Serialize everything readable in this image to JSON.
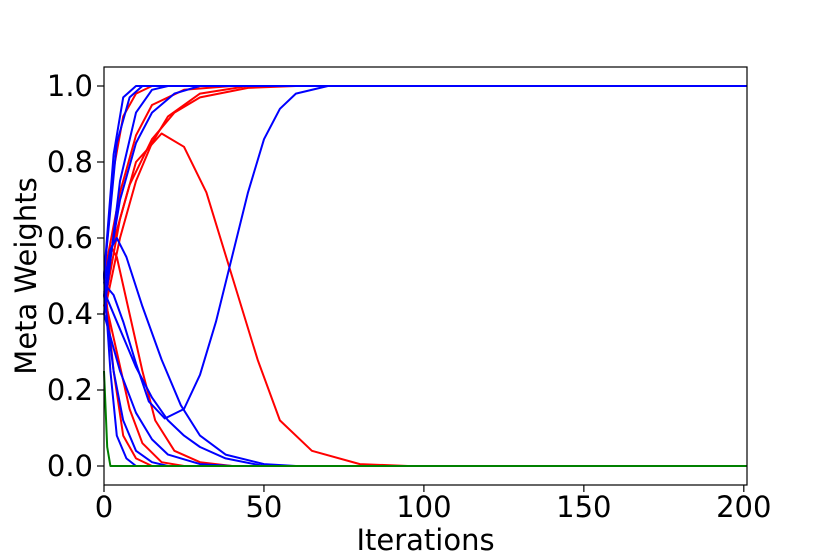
{
  "chart_data": {
    "type": "line",
    "title": "",
    "xlabel": "Iterations",
    "ylabel": "Meta Weights",
    "xlim": [
      0,
      201
    ],
    "ylim": [
      -0.05,
      1.05
    ],
    "xticks": [
      0,
      50,
      100,
      150,
      200
    ],
    "yticks": [
      0.0,
      0.2,
      0.4,
      0.6,
      0.8,
      1.0
    ],
    "xtick_labels": [
      "0",
      "50",
      "100",
      "150",
      "200"
    ],
    "ytick_labels": [
      "0.0",
      "0.2",
      "0.4",
      "0.6",
      "0.8",
      "1.0"
    ],
    "grid": false,
    "legend": "none",
    "colors": {
      "red": "#ff0000",
      "blue": "#0000ff",
      "green": "#008000"
    },
    "series": [
      {
        "color": "red",
        "points": [
          [
            0,
            0.5
          ],
          [
            5,
            0.72
          ],
          [
            10,
            0.87
          ],
          [
            15,
            0.95
          ],
          [
            25,
            0.99
          ],
          [
            40,
            1.0
          ],
          [
            201,
            1.0
          ]
        ]
      },
      {
        "color": "red",
        "points": [
          [
            0,
            0.5
          ],
          [
            8,
            0.74
          ],
          [
            15,
            0.86
          ],
          [
            22,
            0.93
          ],
          [
            30,
            0.97
          ],
          [
            45,
            0.995
          ],
          [
            60,
            1.0
          ],
          [
            201,
            1.0
          ]
        ]
      },
      {
        "color": "red",
        "points": [
          [
            0,
            0.5
          ],
          [
            3,
            0.78
          ],
          [
            6,
            0.92
          ],
          [
            10,
            0.98
          ],
          [
            15,
            1.0
          ],
          [
            201,
            1.0
          ]
        ]
      },
      {
        "color": "red",
        "points": [
          [
            0,
            0.4
          ],
          [
            5,
            0.6
          ],
          [
            10,
            0.75
          ],
          [
            15,
            0.85
          ],
          [
            20,
            0.92
          ],
          [
            30,
            0.98
          ],
          [
            45,
            1.0
          ],
          [
            201,
            1.0
          ]
        ]
      },
      {
        "color": "red",
        "points": [
          [
            0,
            0.42
          ],
          [
            5,
            0.65
          ],
          [
            10,
            0.8
          ],
          [
            18,
            0.875
          ],
          [
            25,
            0.84
          ],
          [
            32,
            0.72
          ],
          [
            40,
            0.5
          ],
          [
            48,
            0.28
          ],
          [
            55,
            0.12
          ],
          [
            65,
            0.04
          ],
          [
            80,
            0.005
          ],
          [
            95,
            0.0
          ],
          [
            201,
            0.0
          ]
        ]
      },
      {
        "color": "red",
        "points": [
          [
            0,
            0.5
          ],
          [
            2,
            0.58
          ],
          [
            4,
            0.55
          ],
          [
            8,
            0.4
          ],
          [
            12,
            0.25
          ],
          [
            16,
            0.12
          ],
          [
            22,
            0.04
          ],
          [
            30,
            0.01
          ],
          [
            40,
            0.0
          ],
          [
            201,
            0.0
          ]
        ]
      },
      {
        "color": "red",
        "points": [
          [
            0,
            0.45
          ],
          [
            4,
            0.3
          ],
          [
            8,
            0.15
          ],
          [
            12,
            0.06
          ],
          [
            18,
            0.01
          ],
          [
            25,
            0.0
          ],
          [
            201,
            0.0
          ]
        ]
      },
      {
        "color": "red",
        "points": [
          [
            0,
            0.5
          ],
          [
            3,
            0.25
          ],
          [
            6,
            0.08
          ],
          [
            10,
            0.02
          ],
          [
            15,
            0.0
          ],
          [
            201,
            0.0
          ]
        ]
      },
      {
        "color": "blue",
        "points": [
          [
            0,
            0.5
          ],
          [
            3,
            0.82
          ],
          [
            6,
            0.97
          ],
          [
            10,
            1.0
          ],
          [
            201,
            1.0
          ]
        ]
      },
      {
        "color": "blue",
        "points": [
          [
            0,
            0.5
          ],
          [
            4,
            0.85
          ],
          [
            8,
            0.97
          ],
          [
            12,
            1.0
          ],
          [
            201,
            1.0
          ]
        ]
      },
      {
        "color": "blue",
        "points": [
          [
            0,
            0.4
          ],
          [
            5,
            0.75
          ],
          [
            10,
            0.93
          ],
          [
            15,
            0.99
          ],
          [
            20,
            1.0
          ],
          [
            201,
            1.0
          ]
        ]
      },
      {
        "color": "blue",
        "points": [
          [
            0,
            0.45
          ],
          [
            5,
            0.7
          ],
          [
            10,
            0.85
          ],
          [
            15,
            0.93
          ],
          [
            22,
            0.98
          ],
          [
            30,
            1.0
          ],
          [
            201,
            1.0
          ]
        ]
      },
      {
        "color": "blue",
        "points": [
          [
            0,
            0.48
          ],
          [
            3,
            0.45
          ],
          [
            6,
            0.38
          ],
          [
            10,
            0.27
          ],
          [
            14,
            0.17
          ],
          [
            19,
            0.125
          ],
          [
            25,
            0.15
          ],
          [
            30,
            0.24
          ],
          [
            35,
            0.38
          ],
          [
            40,
            0.55
          ],
          [
            45,
            0.72
          ],
          [
            50,
            0.86
          ],
          [
            55,
            0.94
          ],
          [
            60,
            0.98
          ],
          [
            70,
            1.0
          ],
          [
            201,
            1.0
          ]
        ]
      },
      {
        "color": "blue",
        "points": [
          [
            0,
            0.48
          ],
          [
            2,
            0.57
          ],
          [
            4,
            0.6
          ],
          [
            7,
            0.55
          ],
          [
            12,
            0.42
          ],
          [
            18,
            0.28
          ],
          [
            24,
            0.16
          ],
          [
            30,
            0.08
          ],
          [
            38,
            0.03
          ],
          [
            50,
            0.005
          ],
          [
            60,
            0.0
          ],
          [
            201,
            0.0
          ]
        ]
      },
      {
        "color": "blue",
        "points": [
          [
            0,
            0.46
          ],
          [
            5,
            0.36
          ],
          [
            10,
            0.26
          ],
          [
            15,
            0.18
          ],
          [
            20,
            0.12
          ],
          [
            25,
            0.08
          ],
          [
            30,
            0.05
          ],
          [
            38,
            0.02
          ],
          [
            50,
            0.0
          ],
          [
            201,
            0.0
          ]
        ]
      },
      {
        "color": "blue",
        "points": [
          [
            0,
            0.4
          ],
          [
            5,
            0.25
          ],
          [
            10,
            0.14
          ],
          [
            15,
            0.07
          ],
          [
            20,
            0.03
          ],
          [
            30,
            0.005
          ],
          [
            40,
            0.0
          ],
          [
            201,
            0.0
          ]
        ]
      },
      {
        "color": "blue",
        "points": [
          [
            0,
            0.45
          ],
          [
            3,
            0.25
          ],
          [
            6,
            0.12
          ],
          [
            10,
            0.04
          ],
          [
            15,
            0.01
          ],
          [
            20,
            0.0
          ],
          [
            201,
            0.0
          ]
        ]
      },
      {
        "color": "blue",
        "points": [
          [
            0,
            0.5
          ],
          [
            2,
            0.25
          ],
          [
            4,
            0.08
          ],
          [
            7,
            0.02
          ],
          [
            10,
            0.0
          ],
          [
            201,
            0.0
          ]
        ]
      },
      {
        "color": "green",
        "points": [
          [
            0,
            0.25
          ],
          [
            1,
            0.05
          ],
          [
            2,
            0.0
          ],
          [
            201,
            0.0
          ]
        ]
      }
    ]
  }
}
